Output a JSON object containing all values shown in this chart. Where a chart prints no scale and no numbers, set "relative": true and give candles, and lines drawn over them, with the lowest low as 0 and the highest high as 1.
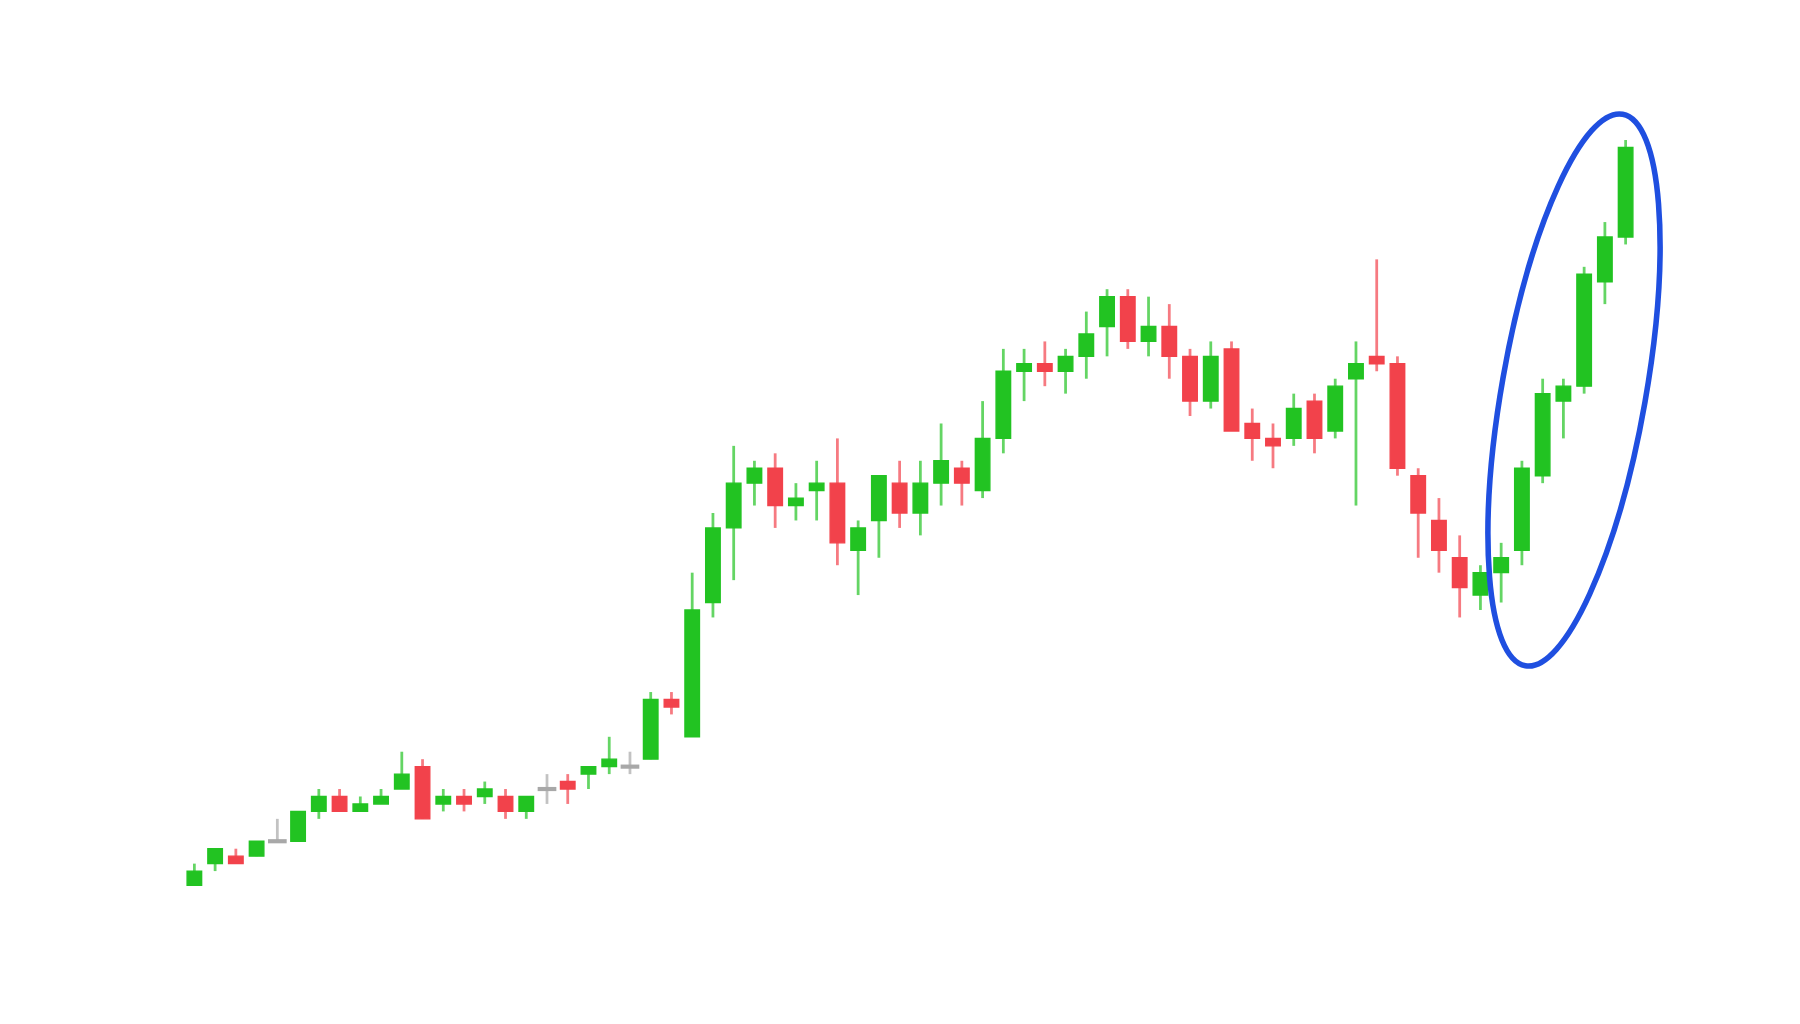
{
  "chart_data": {
    "type": "candlestick",
    "relative": true,
    "categories": [
      null,
      null,
      null,
      null,
      null,
      null,
      null,
      null,
      null,
      null,
      null,
      null,
      null,
      null,
      null,
      null,
      null,
      null,
      null,
      null,
      null,
      null,
      null,
      null,
      null,
      null,
      null,
      null,
      null,
      null,
      null,
      null,
      null,
      null,
      null,
      null,
      null,
      null,
      null,
      null,
      null,
      null,
      null,
      null,
      null,
      null,
      null,
      null,
      null,
      null,
      null,
      null,
      null,
      null,
      null,
      null,
      null,
      null,
      null,
      null,
      null,
      null,
      null,
      null,
      null,
      null,
      null,
      null,
      null,
      null
    ],
    "ohlc": [
      [
        0.0,
        0.03,
        0.0,
        0.02
      ],
      [
        0.03,
        0.05,
        0.02,
        0.05
      ],
      [
        0.04,
        0.05,
        0.03,
        0.03
      ],
      [
        0.04,
        0.06,
        0.04,
        0.06
      ],
      [
        0.06,
        0.09,
        0.06,
        0.06
      ],
      [
        0.06,
        0.1,
        0.06,
        0.1
      ],
      [
        0.1,
        0.13,
        0.09,
        0.12
      ],
      [
        0.12,
        0.13,
        0.1,
        0.1
      ],
      [
        0.1,
        0.12,
        0.1,
        0.11
      ],
      [
        0.11,
        0.13,
        0.11,
        0.12
      ],
      [
        0.13,
        0.18,
        0.13,
        0.15
      ],
      [
        0.16,
        0.17,
        0.09,
        0.09
      ],
      [
        0.11,
        0.13,
        0.1,
        0.12
      ],
      [
        0.12,
        0.13,
        0.1,
        0.11
      ],
      [
        0.12,
        0.14,
        0.11,
        0.13
      ],
      [
        0.12,
        0.13,
        0.09,
        0.1
      ],
      [
        0.1,
        0.12,
        0.09,
        0.12
      ],
      [
        0.13,
        0.15,
        0.11,
        0.13
      ],
      [
        0.14,
        0.15,
        0.11,
        0.13
      ],
      [
        0.15,
        0.16,
        0.13,
        0.16
      ],
      [
        0.16,
        0.2,
        0.15,
        0.17
      ],
      [
        0.16,
        0.18,
        0.15,
        0.16
      ],
      [
        0.17,
        0.26,
        0.17,
        0.25
      ],
      [
        0.25,
        0.26,
        0.23,
        0.24
      ],
      [
        0.2,
        0.42,
        0.2,
        0.37
      ],
      [
        0.38,
        0.5,
        0.36,
        0.48
      ],
      [
        0.48,
        0.59,
        0.41,
        0.54
      ],
      [
        0.54,
        0.57,
        0.51,
        0.56
      ],
      [
        0.56,
        0.58,
        0.48,
        0.51
      ],
      [
        0.51,
        0.54,
        0.49,
        0.52
      ],
      [
        0.53,
        0.57,
        0.49,
        0.54
      ],
      [
        0.54,
        0.6,
        0.43,
        0.46
      ],
      [
        0.45,
        0.49,
        0.39,
        0.48
      ],
      [
        0.49,
        0.55,
        0.44,
        0.55
      ],
      [
        0.54,
        0.57,
        0.48,
        0.5
      ],
      [
        0.5,
        0.57,
        0.47,
        0.54
      ],
      [
        0.54,
        0.62,
        0.51,
        0.57
      ],
      [
        0.56,
        0.57,
        0.51,
        0.54
      ],
      [
        0.53,
        0.65,
        0.52,
        0.6
      ],
      [
        0.6,
        0.72,
        0.58,
        0.69
      ],
      [
        0.69,
        0.72,
        0.65,
        0.7
      ],
      [
        0.7,
        0.73,
        0.67,
        0.69
      ],
      [
        0.69,
        0.72,
        0.66,
        0.71
      ],
      [
        0.71,
        0.77,
        0.68,
        0.74
      ],
      [
        0.75,
        0.8,
        0.71,
        0.79
      ],
      [
        0.79,
        0.8,
        0.72,
        0.73
      ],
      [
        0.73,
        0.79,
        0.71,
        0.75
      ],
      [
        0.75,
        0.78,
        0.68,
        0.71
      ],
      [
        0.71,
        0.72,
        0.63,
        0.65
      ],
      [
        0.65,
        0.73,
        0.64,
        0.71
      ],
      [
        0.72,
        0.73,
        0.61,
        0.61
      ],
      [
        0.62,
        0.64,
        0.57,
        0.6
      ],
      [
        0.6,
        0.62,
        0.56,
        0.59
      ],
      [
        0.6,
        0.66,
        0.59,
        0.64
      ],
      [
        0.65,
        0.66,
        0.58,
        0.6
      ],
      [
        0.61,
        0.68,
        0.6,
        0.67
      ],
      [
        0.68,
        0.73,
        0.51,
        0.7
      ],
      [
        0.71,
        0.84,
        0.69,
        0.7
      ],
      [
        0.7,
        0.71,
        0.55,
        0.56
      ],
      [
        0.55,
        0.56,
        0.44,
        0.5
      ],
      [
        0.49,
        0.52,
        0.42,
        0.45
      ],
      [
        0.44,
        0.47,
        0.36,
        0.4
      ],
      [
        0.39,
        0.43,
        0.37,
        0.42
      ],
      [
        0.42,
        0.46,
        0.38,
        0.44
      ],
      [
        0.45,
        0.57,
        0.43,
        0.56
      ],
      [
        0.55,
        0.68,
        0.54,
        0.66
      ],
      [
        0.65,
        0.68,
        0.6,
        0.67
      ],
      [
        0.67,
        0.83,
        0.66,
        0.82
      ],
      [
        0.81,
        0.89,
        0.78,
        0.87
      ],
      [
        0.87,
        1.0,
        0.86,
        0.99
      ]
    ],
    "colors": [
      "#22c322",
      "#22c322",
      "#f2424b",
      "#22c322",
      "#a8a8a8",
      "#22c322",
      "#22c322",
      "#f2424b",
      "#22c322",
      "#22c322",
      "#22c322",
      "#f2424b",
      "#22c322",
      "#f2424b",
      "#22c322",
      "#f2424b",
      "#22c322",
      "#a8a8a8",
      "#f2424b",
      "#22c322",
      "#22c322",
      "#a8a8a8",
      "#22c322",
      "#f2424b",
      "#22c322",
      "#22c322",
      "#22c322",
      "#22c322",
      "#f2424b",
      "#22c322",
      "#22c322",
      "#f2424b",
      "#22c322",
      "#22c322",
      "#f2424b",
      "#22c322",
      "#22c322",
      "#f2424b",
      "#22c322",
      "#22c322",
      "#22c322",
      "#f2424b",
      "#22c322",
      "#22c322",
      "#22c322",
      "#f2424b",
      "#22c322",
      "#f2424b",
      "#f2424b",
      "#22c322",
      "#f2424b",
      "#f2424b",
      "#f2424b",
      "#22c322",
      "#f2424b",
      "#22c322",
      "#22c322",
      "#f2424b",
      "#f2424b",
      "#f2424b",
      "#f2424b",
      "#f2424b",
      "#22c322",
      "#22c322",
      "#22c322",
      "#22c322",
      "#22c322",
      "#22c322",
      "#22c322",
      "#22c322"
    ]
  }
}
